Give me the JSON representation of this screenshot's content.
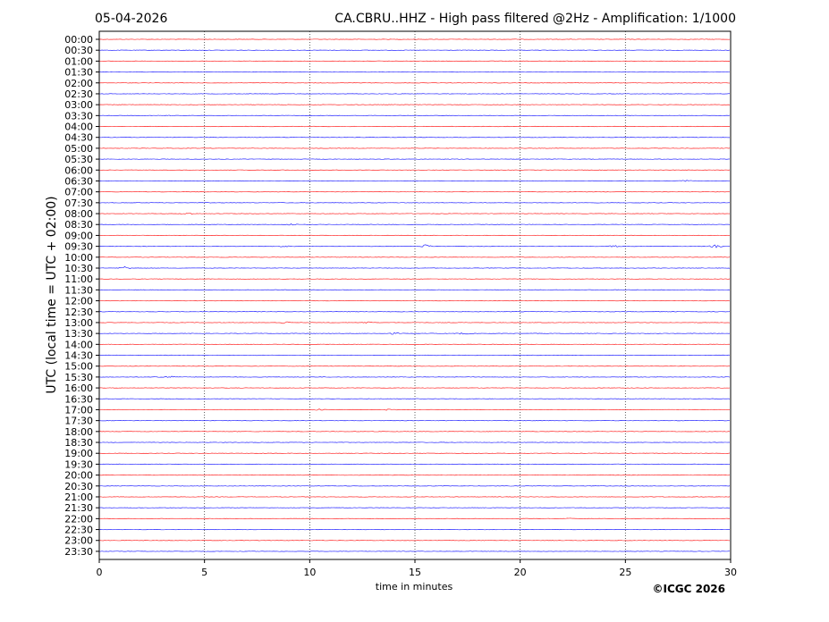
{
  "header": {
    "date": "05-04-2026",
    "title": "CA.CBRU..HHZ - High pass filtered @2Hz - Amplification: 1/1000"
  },
  "footer": {
    "copyright": "©ICGC 2026"
  },
  "chart_data": {
    "type": "line",
    "title": "CA.CBRU..HHZ - High pass filtered @2Hz - Amplification: 1/1000",
    "xlabel": "time in minutes",
    "ylabel": "UTC (local time = UTC + 02:00)",
    "xlim": [
      0,
      30
    ],
    "xticks": [
      "0",
      "5",
      "10",
      "15",
      "20",
      "25",
      "30"
    ],
    "grid": "vertical dotted at 5-minute ticks",
    "row_colors": [
      "#ff0000",
      "#0000ff"
    ],
    "rows": [
      "00:00",
      "00:30",
      "01:00",
      "01:30",
      "02:00",
      "02:30",
      "03:00",
      "03:30",
      "04:00",
      "04:30",
      "05:00",
      "05:30",
      "06:00",
      "06:30",
      "07:00",
      "07:30",
      "08:00",
      "08:30",
      "09:00",
      "09:30",
      "10:00",
      "10:30",
      "11:00",
      "11:30",
      "12:00",
      "12:30",
      "13:00",
      "13:30",
      "14:00",
      "14:30",
      "15:00",
      "15:30",
      "16:00",
      "16:30",
      "17:00",
      "17:30",
      "18:00",
      "18:30",
      "19:00",
      "19:30",
      "20:00",
      "20:30",
      "21:00",
      "21:30",
      "22:00",
      "22:30",
      "23:00",
      "23:30"
    ],
    "events": [
      {
        "row": "03:30",
        "minute": 3.1,
        "amplitude": 1
      },
      {
        "row": "06:30",
        "minute": 27.9,
        "amplitude": 1.5
      },
      {
        "row": "08:00",
        "minute": 4.2,
        "amplitude": 2
      },
      {
        "row": "08:30",
        "minute": 9.1,
        "amplitude": 1.5
      },
      {
        "row": "09:30",
        "minute": 8.8,
        "amplitude": 1.5
      },
      {
        "row": "09:30",
        "minute": 15.5,
        "amplitude": 3
      },
      {
        "row": "09:30",
        "minute": 24.5,
        "amplitude": 1.5
      },
      {
        "row": "09:30",
        "minute": 29.3,
        "amplitude": 2.5
      },
      {
        "row": "10:30",
        "minute": 1.2,
        "amplitude": 3
      },
      {
        "row": "13:00",
        "minute": 8.8,
        "amplitude": 2
      },
      {
        "row": "13:00",
        "minute": 12.7,
        "amplitude": 1.5
      },
      {
        "row": "13:30",
        "minute": 14.0,
        "amplitude": 1.5
      },
      {
        "row": "13:30",
        "minute": 17.3,
        "amplitude": 1.5
      },
      {
        "row": "15:30",
        "minute": 2.9,
        "amplitude": 1.2
      },
      {
        "row": "15:30",
        "minute": 3.4,
        "amplitude": 1.5
      },
      {
        "row": "17:00",
        "minute": 10.5,
        "amplitude": 1.5
      },
      {
        "row": "17:00",
        "minute": 13.8,
        "amplitude": 1.5
      },
      {
        "row": "22:00",
        "minute": 22.3,
        "amplitude": 1
      }
    ]
  }
}
